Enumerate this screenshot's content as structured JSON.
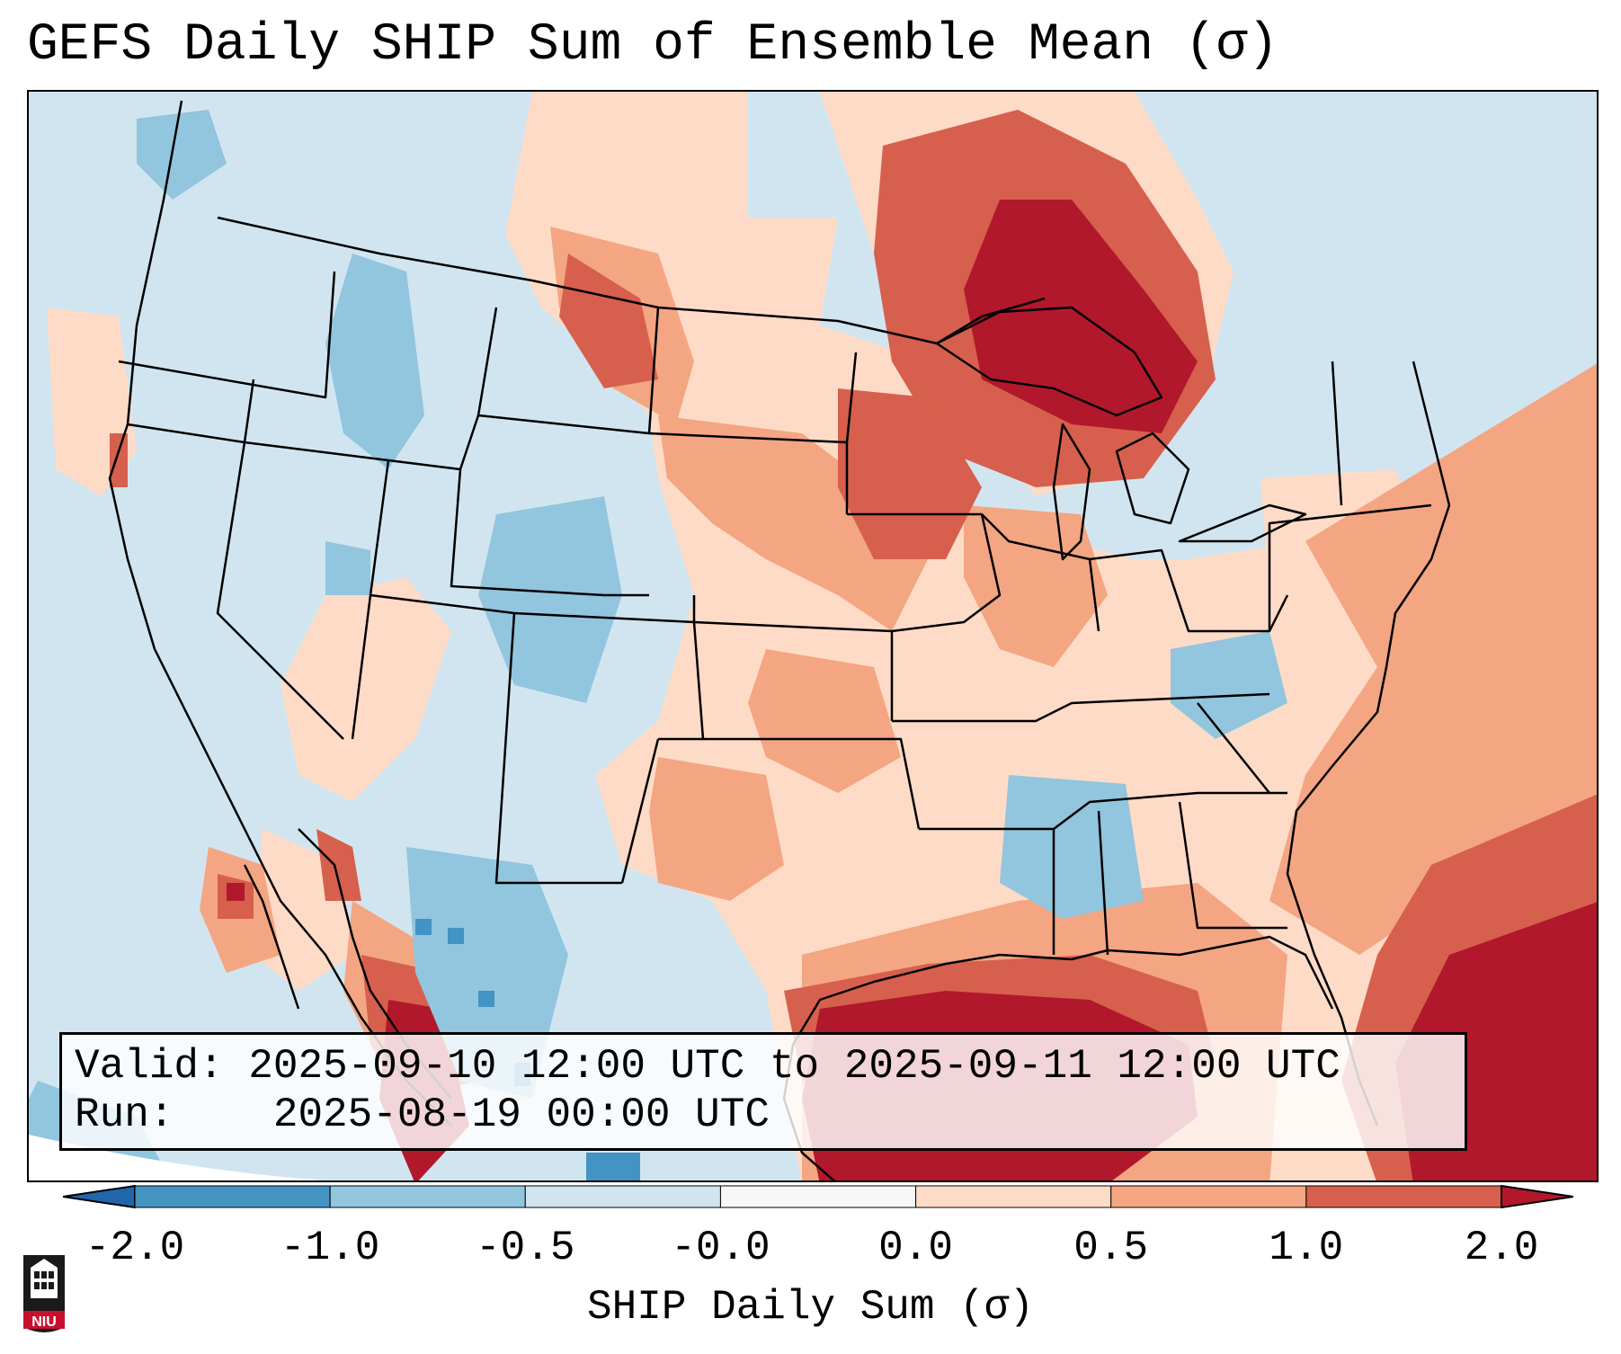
{
  "title": "GEFS Daily SHIP Sum of Ensemble Mean (σ)",
  "info": {
    "valid_label": "Valid:",
    "valid_value": "2025-09-10 12:00 UTC to 2025-09-11 12:00 UTC",
    "run_label": "Run:",
    "run_value": "2025-08-19 00:00 UTC"
  },
  "colorbar": {
    "label": "SHIP Daily Sum (σ)",
    "ticks": [
      "-2.0",
      "-1.0",
      "-0.5",
      "-0.0",
      "0.0",
      "0.5",
      "1.0",
      "2.0"
    ],
    "bin_colors": [
      "#4393c3",
      "#92c5de",
      "#d1e5f0",
      "#f7f7f7",
      "#fddbc7",
      "#f4a582",
      "#d6604d"
    ],
    "under_color": "#2166ac",
    "over_color": "#b2182b"
  },
  "logo": {
    "text": "NIU",
    "color": "#c8102e"
  }
}
